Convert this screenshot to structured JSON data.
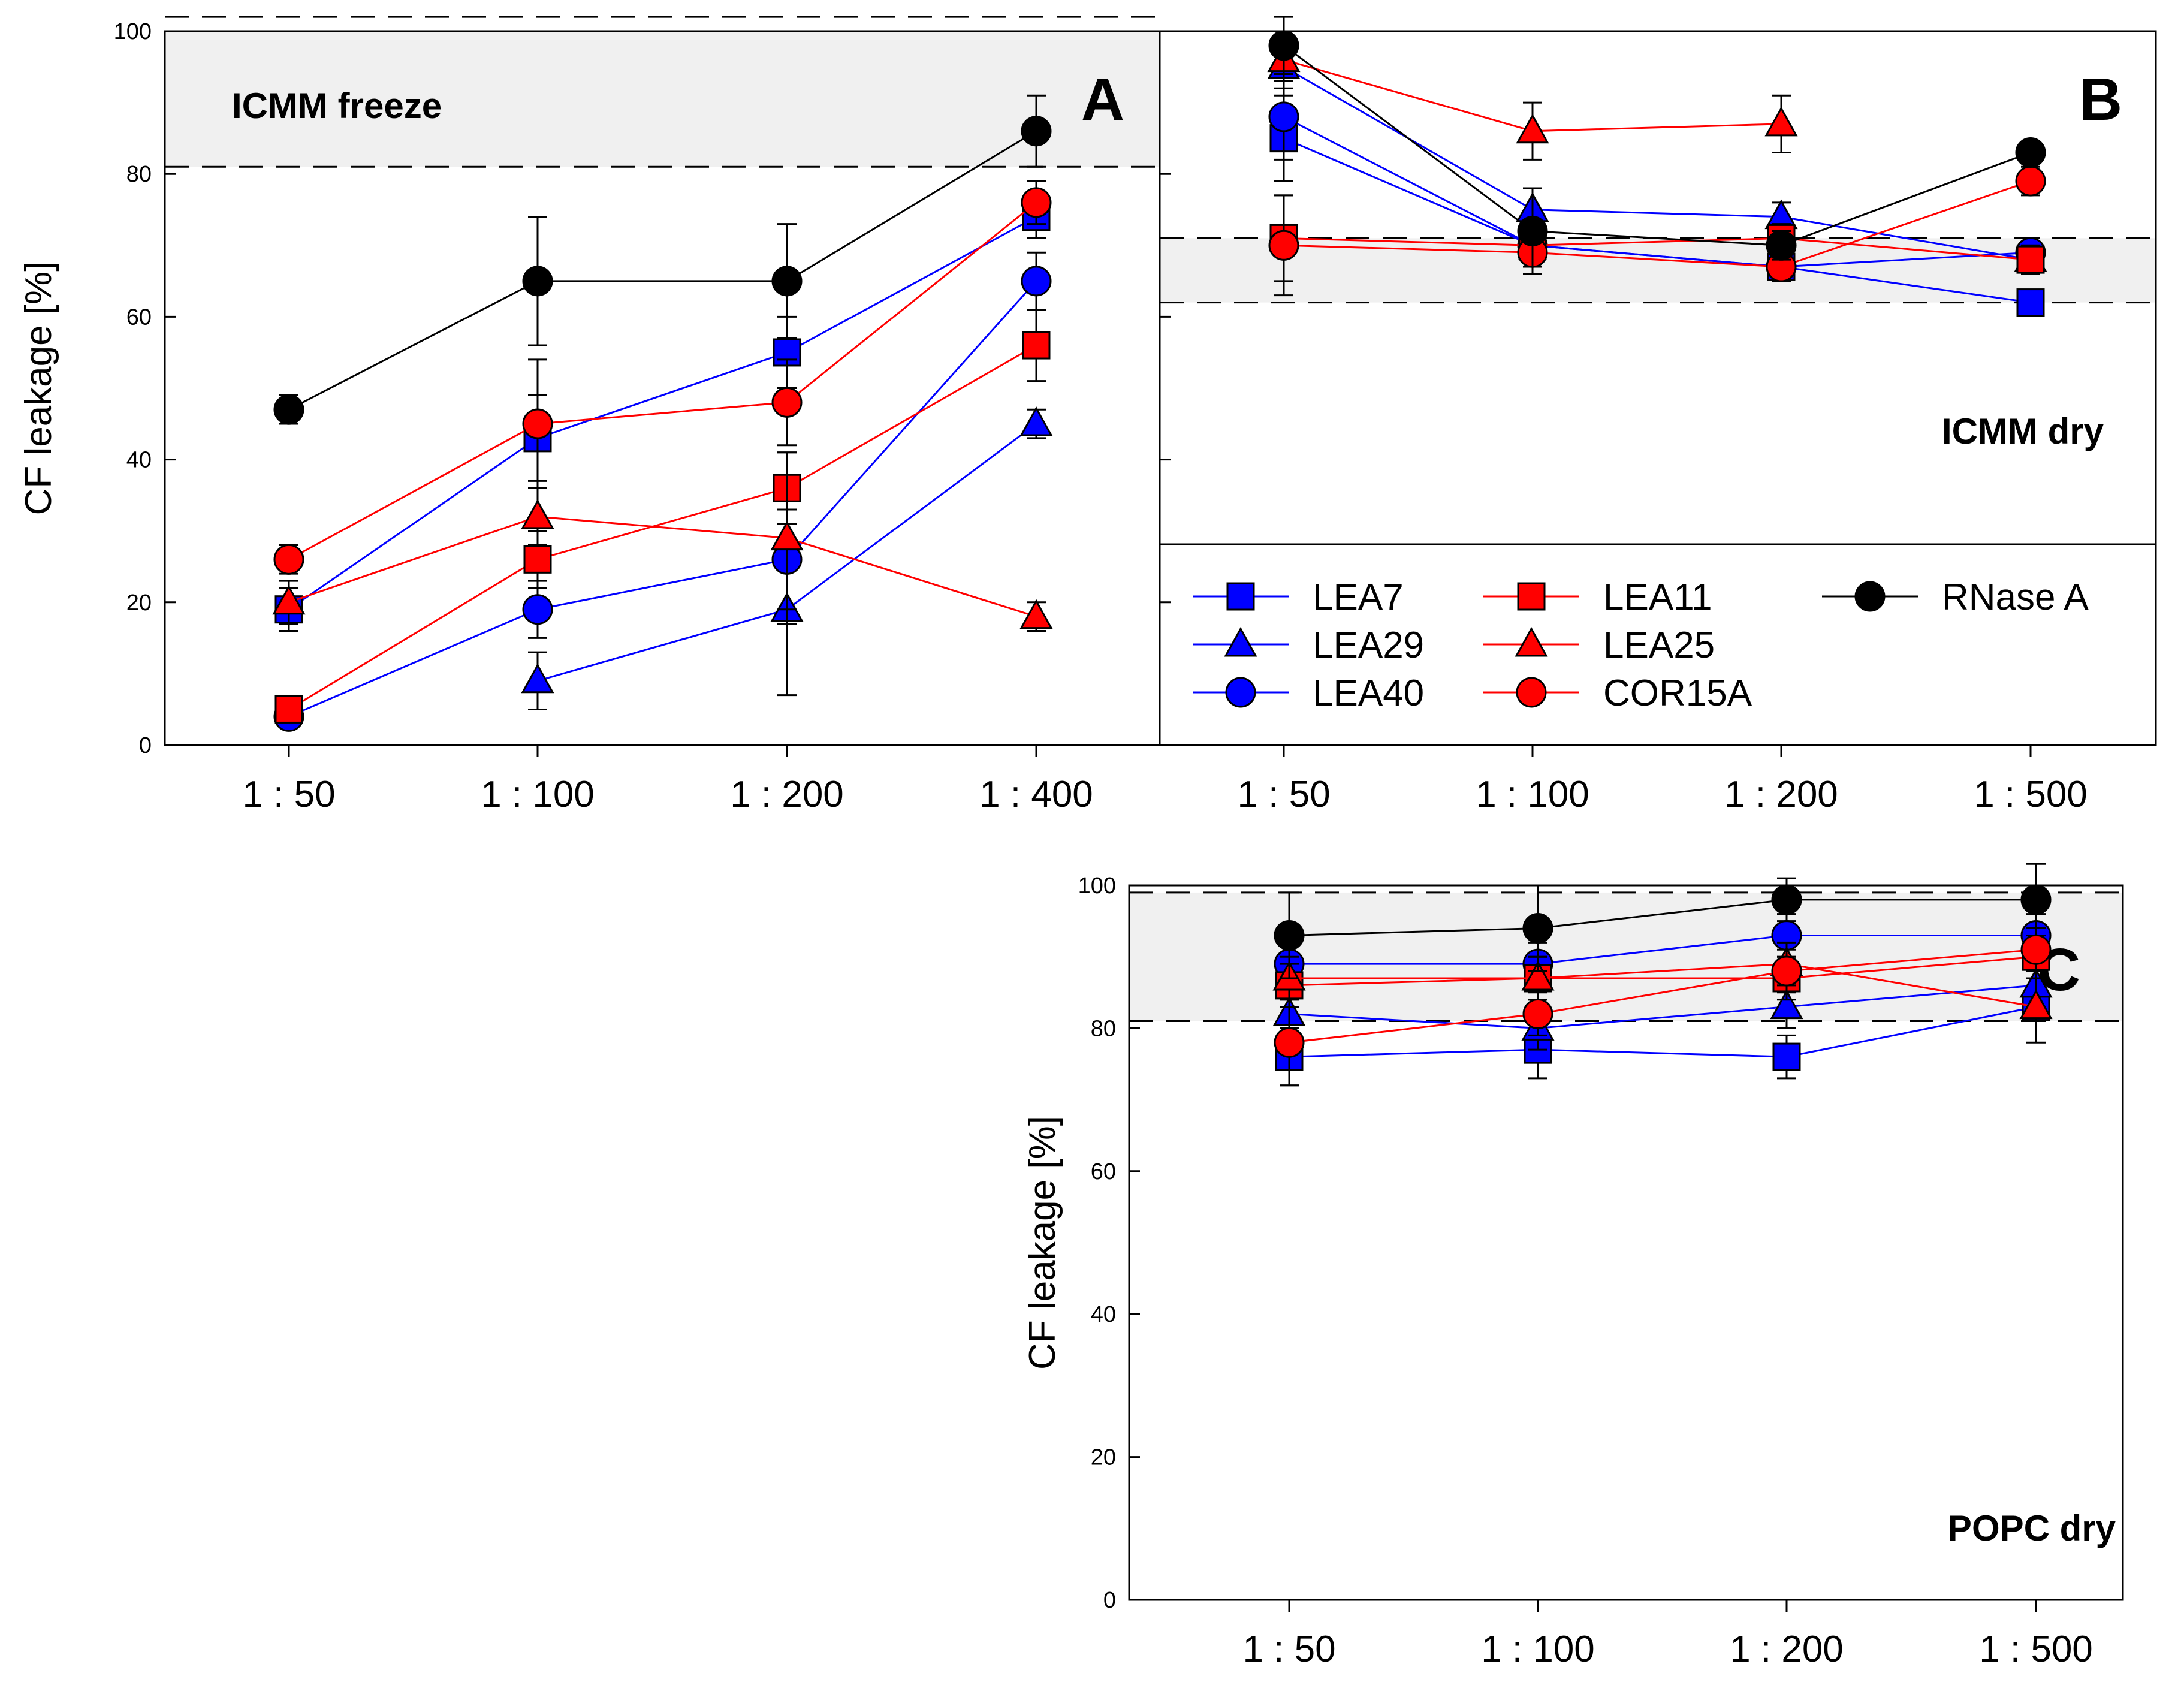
{
  "figure": {
    "series_colors": {
      "LEA7": "#0000ff",
      "LEA29": "#0000ff",
      "LEA40": "#0000ff",
      "LEA11": "#ff0000",
      "LEA25": "#ff0000",
      "COR15A": "#ff0000",
      "RNase A": "#000000"
    },
    "series_markers": {
      "LEA7": "square",
      "LEA29": "triangle",
      "LEA40": "circle",
      "LEA11": "square",
      "LEA25": "triangle",
      "COR15A": "circle",
      "RNase A": "circle"
    },
    "legend_items": [
      "LEA7",
      "LEA29",
      "LEA40",
      "LEA11",
      "LEA25",
      "COR15A",
      "RNase A"
    ]
  },
  "chart_data": [
    {
      "id": "A",
      "type": "line",
      "panel_label": "A",
      "condition_label": "ICMM freeze",
      "ylabel": "CF leakage [%]",
      "xlabel": "",
      "categories": [
        "1 : 50",
        "1 : 100",
        "1 : 200",
        "1 : 400"
      ],
      "ylim": [
        0,
        100
      ],
      "yticks": [
        0,
        20,
        40,
        60,
        80,
        100
      ],
      "reference_band": [
        81,
        102
      ],
      "series": [
        {
          "name": "LEA7",
          "values": [
            19,
            43,
            55,
            74
          ],
          "errors": [
            3,
            6,
            5,
            3
          ]
        },
        {
          "name": "LEA29",
          "values": [
            null,
            9,
            19,
            45
          ],
          "errors": [
            null,
            4,
            12,
            2
          ]
        },
        {
          "name": "LEA40",
          "values": [
            4,
            19,
            26,
            65
          ],
          "errors": [
            1,
            4,
            7,
            4
          ]
        },
        {
          "name": "LEA11",
          "values": [
            5,
            26,
            36,
            56
          ],
          "errors": [
            1,
            4,
            5,
            5
          ]
        },
        {
          "name": "LEA25",
          "values": [
            20,
            32,
            29,
            18
          ],
          "errors": [
            3,
            4,
            12,
            2
          ]
        },
        {
          "name": "COR15A",
          "values": [
            26,
            45,
            48,
            76
          ],
          "errors": [
            2,
            9,
            6,
            3
          ]
        },
        {
          "name": "RNase A",
          "values": [
            47,
            65,
            65,
            86
          ],
          "errors": [
            2,
            9,
            8,
            5
          ]
        }
      ]
    },
    {
      "id": "B",
      "type": "line",
      "panel_label": "B",
      "condition_label": "ICMM dry",
      "ylabel": "",
      "xlabel": "",
      "categories": [
        "1 : 50",
        "1 : 100",
        "1 : 200",
        "1 : 500"
      ],
      "ylim": [
        0,
        100
      ],
      "yticks": [
        0,
        20,
        40,
        60,
        80,
        100
      ],
      "reference_band": [
        62,
        71
      ],
      "series": [
        {
          "name": "LEA7",
          "values": [
            85,
            70,
            67,
            62
          ],
          "errors": [
            6,
            3,
            2,
            1
          ]
        },
        {
          "name": "LEA29",
          "values": [
            95,
            75,
            74,
            68
          ],
          "errors": [
            3,
            3,
            2,
            2
          ]
        },
        {
          "name": "LEA40",
          "values": [
            88,
            70,
            67,
            69
          ],
          "errors": [
            6,
            3,
            2,
            2
          ]
        },
        {
          "name": "LEA11",
          "values": [
            71,
            70,
            71,
            68
          ],
          "errors": [
            6,
            3,
            2,
            2
          ]
        },
        {
          "name": "LEA25",
          "values": [
            96,
            86,
            87,
            null
          ],
          "errors": [
            3,
            4,
            4,
            null
          ]
        },
        {
          "name": "COR15A",
          "values": [
            70,
            69,
            67,
            79
          ],
          "errors": [
            7,
            3,
            2,
            2
          ]
        },
        {
          "name": "RNase A",
          "values": [
            98,
            72,
            70,
            83
          ],
          "errors": [
            4,
            6,
            2,
            1
          ]
        }
      ]
    },
    {
      "id": "C",
      "type": "line",
      "panel_label": "C",
      "condition_label": "POPC dry",
      "ylabel": "CF leakage [%]",
      "xlabel": "",
      "categories": [
        "1 : 50",
        "1 : 100",
        "1 : 200",
        "1 : 500"
      ],
      "ylim": [
        0,
        100
      ],
      "yticks": [
        0,
        20,
        40,
        60,
        80,
        100
      ],
      "reference_band": [
        81,
        99
      ],
      "series": [
        {
          "name": "LEA7",
          "values": [
            76,
            77,
            76,
            83
          ],
          "errors": [
            4,
            4,
            3,
            2
          ]
        },
        {
          "name": "LEA29",
          "values": [
            82,
            80,
            83,
            86
          ],
          "errors": [
            3,
            3,
            3,
            3
          ]
        },
        {
          "name": "LEA40",
          "values": [
            89,
            89,
            93,
            93
          ],
          "errors": [
            3,
            3,
            3,
            3
          ]
        },
        {
          "name": "LEA11",
          "values": [
            86,
            87,
            87,
            90
          ],
          "errors": [
            3,
            3,
            3,
            3
          ]
        },
        {
          "name": "LEA25",
          "values": [
            87,
            87,
            89,
            83
          ],
          "errors": [
            3,
            3,
            3,
            5
          ]
        },
        {
          "name": "COR15A",
          "values": [
            78,
            82,
            88,
            91
          ],
          "errors": [
            6,
            3,
            3,
            3
          ]
        },
        {
          "name": "RNase A",
          "values": [
            93,
            94,
            98,
            98
          ],
          "errors": [
            6,
            6,
            3,
            5
          ]
        }
      ]
    }
  ]
}
